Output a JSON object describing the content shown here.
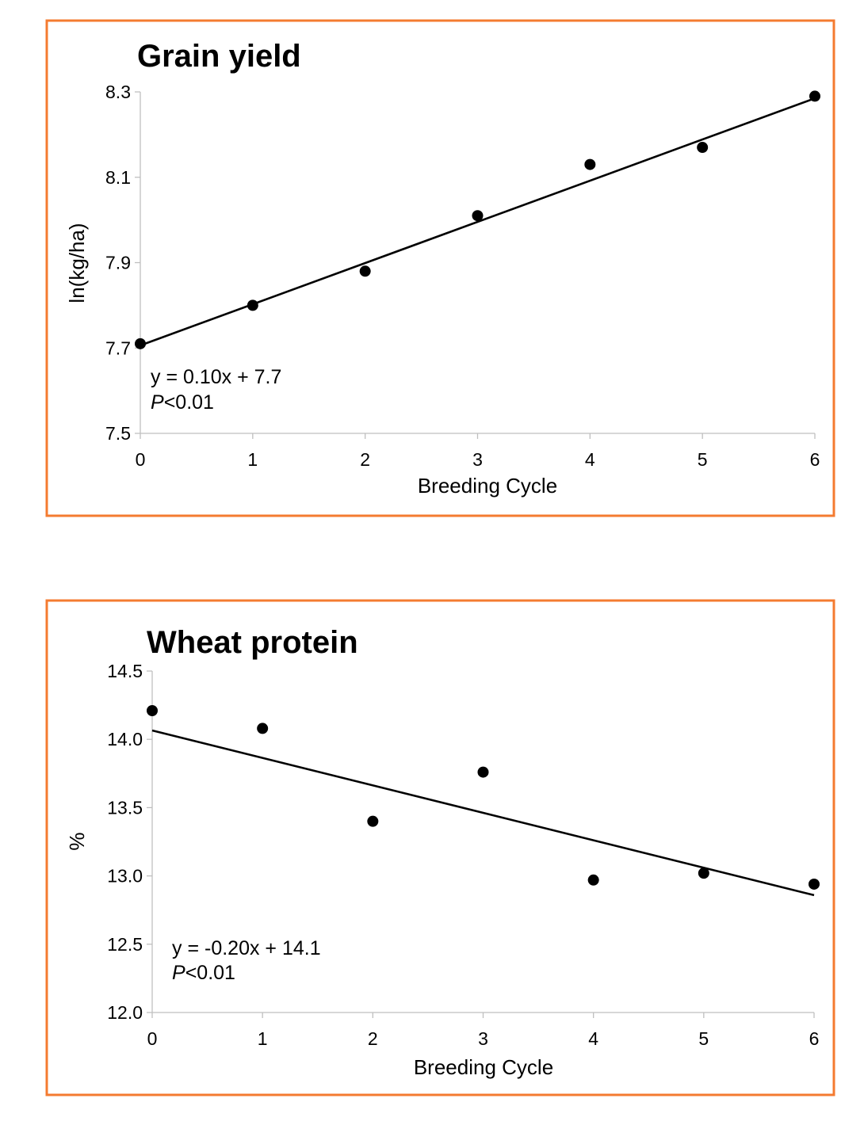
{
  "chart_data": [
    {
      "type": "scatter",
      "title": "Grain yield",
      "xlabel": "Breeding Cycle",
      "ylabel": "ln(kg/ha)",
      "xlim": [
        0,
        6
      ],
      "ylim": [
        7.5,
        8.3
      ],
      "xticks": [
        "0",
        "1",
        "2",
        "3",
        "4",
        "5",
        "6"
      ],
      "yticks": [
        "7.5",
        "7.7",
        "7.9",
        "8.1",
        "8.3"
      ],
      "grid": false,
      "x": [
        0,
        1,
        2,
        3,
        4,
        5,
        6
      ],
      "y": [
        7.71,
        7.8,
        7.88,
        8.01,
        8.13,
        8.17,
        8.29
      ],
      "trendline": {
        "slope": 0.0965,
        "intercept": 7.706
      },
      "annotation": {
        "equation": "y = 0.10x + 7.7",
        "p_symbol": "P",
        "p_value": "<0.01"
      },
      "marker_color": "#000000",
      "frame_color": "#f47b30"
    },
    {
      "type": "scatter",
      "title": "Wheat protein",
      "xlabel": "Breeding Cycle",
      "ylabel": "%",
      "xlim": [
        0,
        6
      ],
      "ylim": [
        12.0,
        14.5
      ],
      "xticks": [
        "0",
        "1",
        "2",
        "3",
        "4",
        "5",
        "6"
      ],
      "yticks": [
        "12.0",
        "12.5",
        "13.0",
        "13.5",
        "14.0",
        "14.5"
      ],
      "grid": false,
      "x": [
        0,
        1,
        2,
        3,
        4,
        5,
        6
      ],
      "y": [
        14.21,
        14.08,
        13.4,
        13.76,
        12.97,
        13.02,
        12.94
      ],
      "trendline": {
        "slope": -0.201,
        "intercept": 14.065
      },
      "annotation": {
        "equation": "y = -0.20x + 14.1",
        "p_symbol": "P",
        "p_value": "<0.01"
      },
      "marker_color": "#000000",
      "frame_color": "#f47b30"
    }
  ]
}
